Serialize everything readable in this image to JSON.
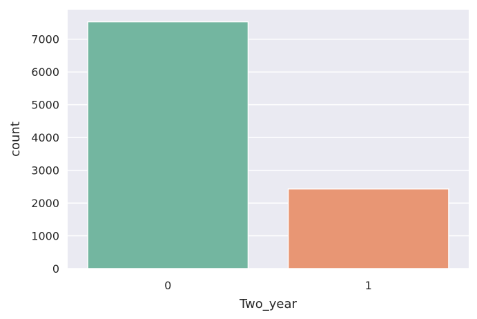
{
  "chart_data": {
    "type": "bar",
    "categories": [
      "0",
      "1"
    ],
    "values": [
      7530,
      2430
    ],
    "xlabel": "Two_year",
    "ylabel": "count",
    "ylim": [
      0,
      7900
    ],
    "yticks": [
      0,
      1000,
      2000,
      3000,
      4000,
      5000,
      6000,
      7000
    ],
    "grid": true,
    "colors": {
      "background": "#EAEAF2",
      "grid": "#FFFFFF",
      "bars": [
        "#73B6A0",
        "#E89674"
      ],
      "text": "#262626"
    }
  }
}
